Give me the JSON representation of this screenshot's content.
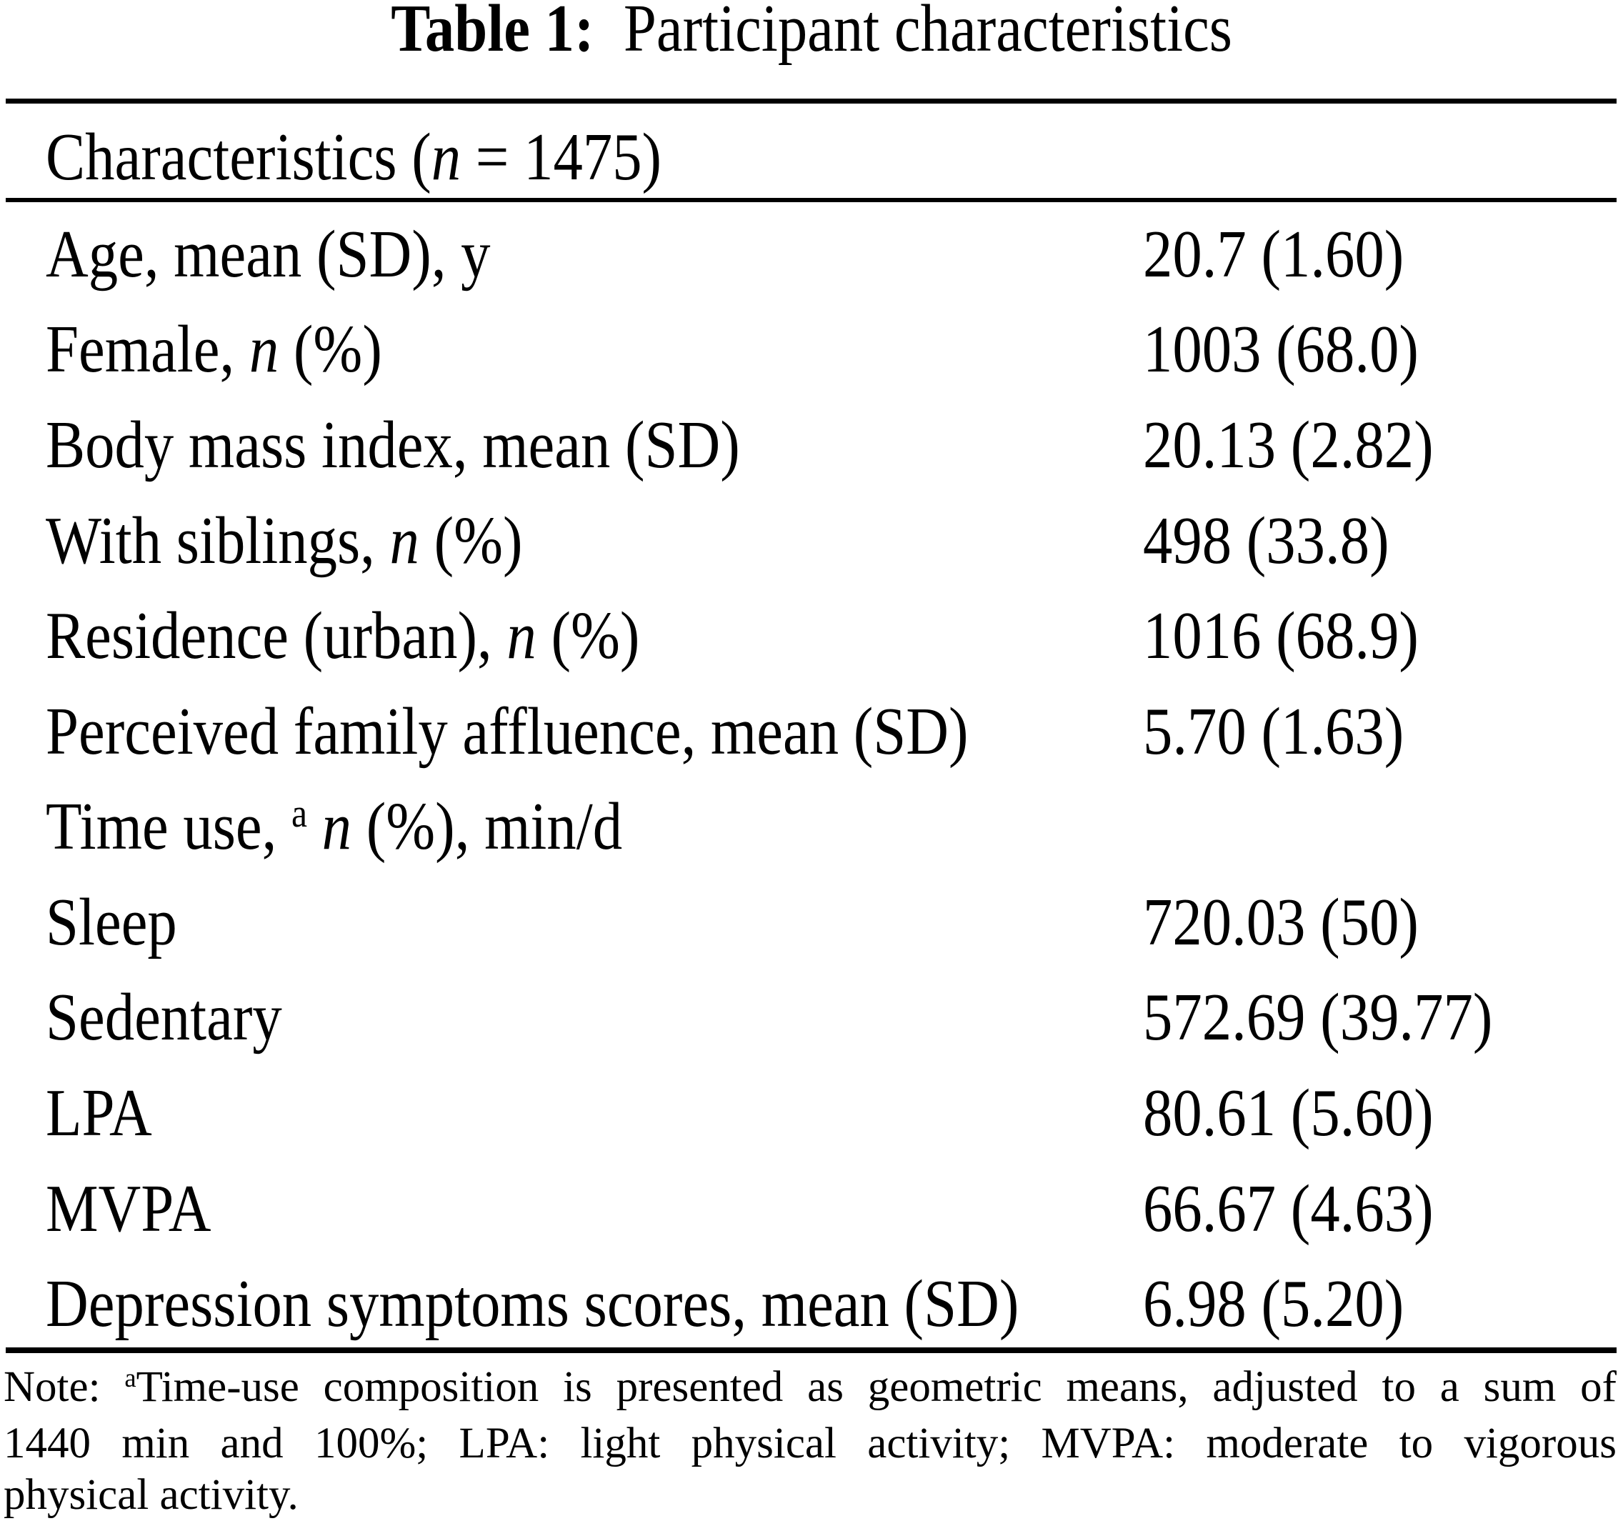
{
  "colors": {
    "background": "#ffffff",
    "text": "#000000"
  },
  "table": {
    "title_segments": [
      {
        "style": "bold",
        "text": "Table 1:"
      },
      {
        "style": "normal",
        "text": "  Participant characteristics"
      }
    ],
    "header_segments": [
      {
        "style": "normal",
        "text": "Characteristics ("
      },
      {
        "style": "italic",
        "text": "n"
      },
      {
        "style": "normal",
        "text": " = 1475)"
      }
    ],
    "rows": [
      {
        "label": [
          {
            "style": "normal",
            "text": "Age, mean (SD), y"
          }
        ],
        "value": "20.7 (1.60)"
      },
      {
        "label": [
          {
            "style": "normal",
            "text": "Female, "
          },
          {
            "style": "italic",
            "text": "n"
          },
          {
            "style": "normal",
            "text": " (%)"
          }
        ],
        "value": "1003 (68.0)"
      },
      {
        "label": [
          {
            "style": "normal",
            "text": "Body mass index, mean (SD)"
          }
        ],
        "value": "20.13 (2.82)"
      },
      {
        "label": [
          {
            "style": "normal",
            "text": "With siblings, "
          },
          {
            "style": "italic",
            "text": "n"
          },
          {
            "style": "normal",
            "text": " (%)"
          }
        ],
        "value": "498 (33.8)"
      },
      {
        "label": [
          {
            "style": "normal",
            "text": "Residence (urban), "
          },
          {
            "style": "italic",
            "text": "n"
          },
          {
            "style": "normal",
            "text": " (%)"
          }
        ],
        "value": "1016 (68.9)"
      },
      {
        "label": [
          {
            "style": "normal",
            "text": "Perceived family affluence, mean (SD)"
          }
        ],
        "value": "5.70 (1.63)"
      },
      {
        "label": [
          {
            "style": "normal",
            "text": "Time use, "
          },
          {
            "style": "sup",
            "text": "a"
          },
          {
            "style": "normal",
            "text": " "
          },
          {
            "style": "italic",
            "text": "n"
          },
          {
            "style": "normal",
            "text": " (%), min/d"
          }
        ],
        "value": ""
      },
      {
        "label": [
          {
            "style": "normal",
            "text": "Sleep"
          }
        ],
        "value": "720.03 (50)"
      },
      {
        "label": [
          {
            "style": "normal",
            "text": "Sedentary"
          }
        ],
        "value": "572.69 (39.77)"
      },
      {
        "label": [
          {
            "style": "normal",
            "text": "LPA"
          }
        ],
        "value": "80.61 (5.60)"
      },
      {
        "label": [
          {
            "style": "normal",
            "text": "MVPA"
          }
        ],
        "value": "66.67 (4.63)"
      },
      {
        "label": [
          {
            "style": "normal",
            "text": "Depression symptoms scores, mean (SD)"
          }
        ],
        "value": "6.98 (5.20)"
      }
    ],
    "note_lines": [
      {
        "justify": true,
        "segments": [
          {
            "style": "normal",
            "text": "Note: "
          },
          {
            "style": "sup",
            "text": "a"
          },
          {
            "style": "normal",
            "text": "Time-use composition is presented as geometric means, adjusted to a sum of"
          }
        ]
      },
      {
        "justify": true,
        "segments": [
          {
            "style": "normal",
            "text": "1440 min and 100%; LPA: light physical activity; MVPA: moderate to vigorous"
          }
        ]
      },
      {
        "justify": false,
        "segments": [
          {
            "style": "normal",
            "text": "physical activity."
          }
        ]
      }
    ]
  }
}
